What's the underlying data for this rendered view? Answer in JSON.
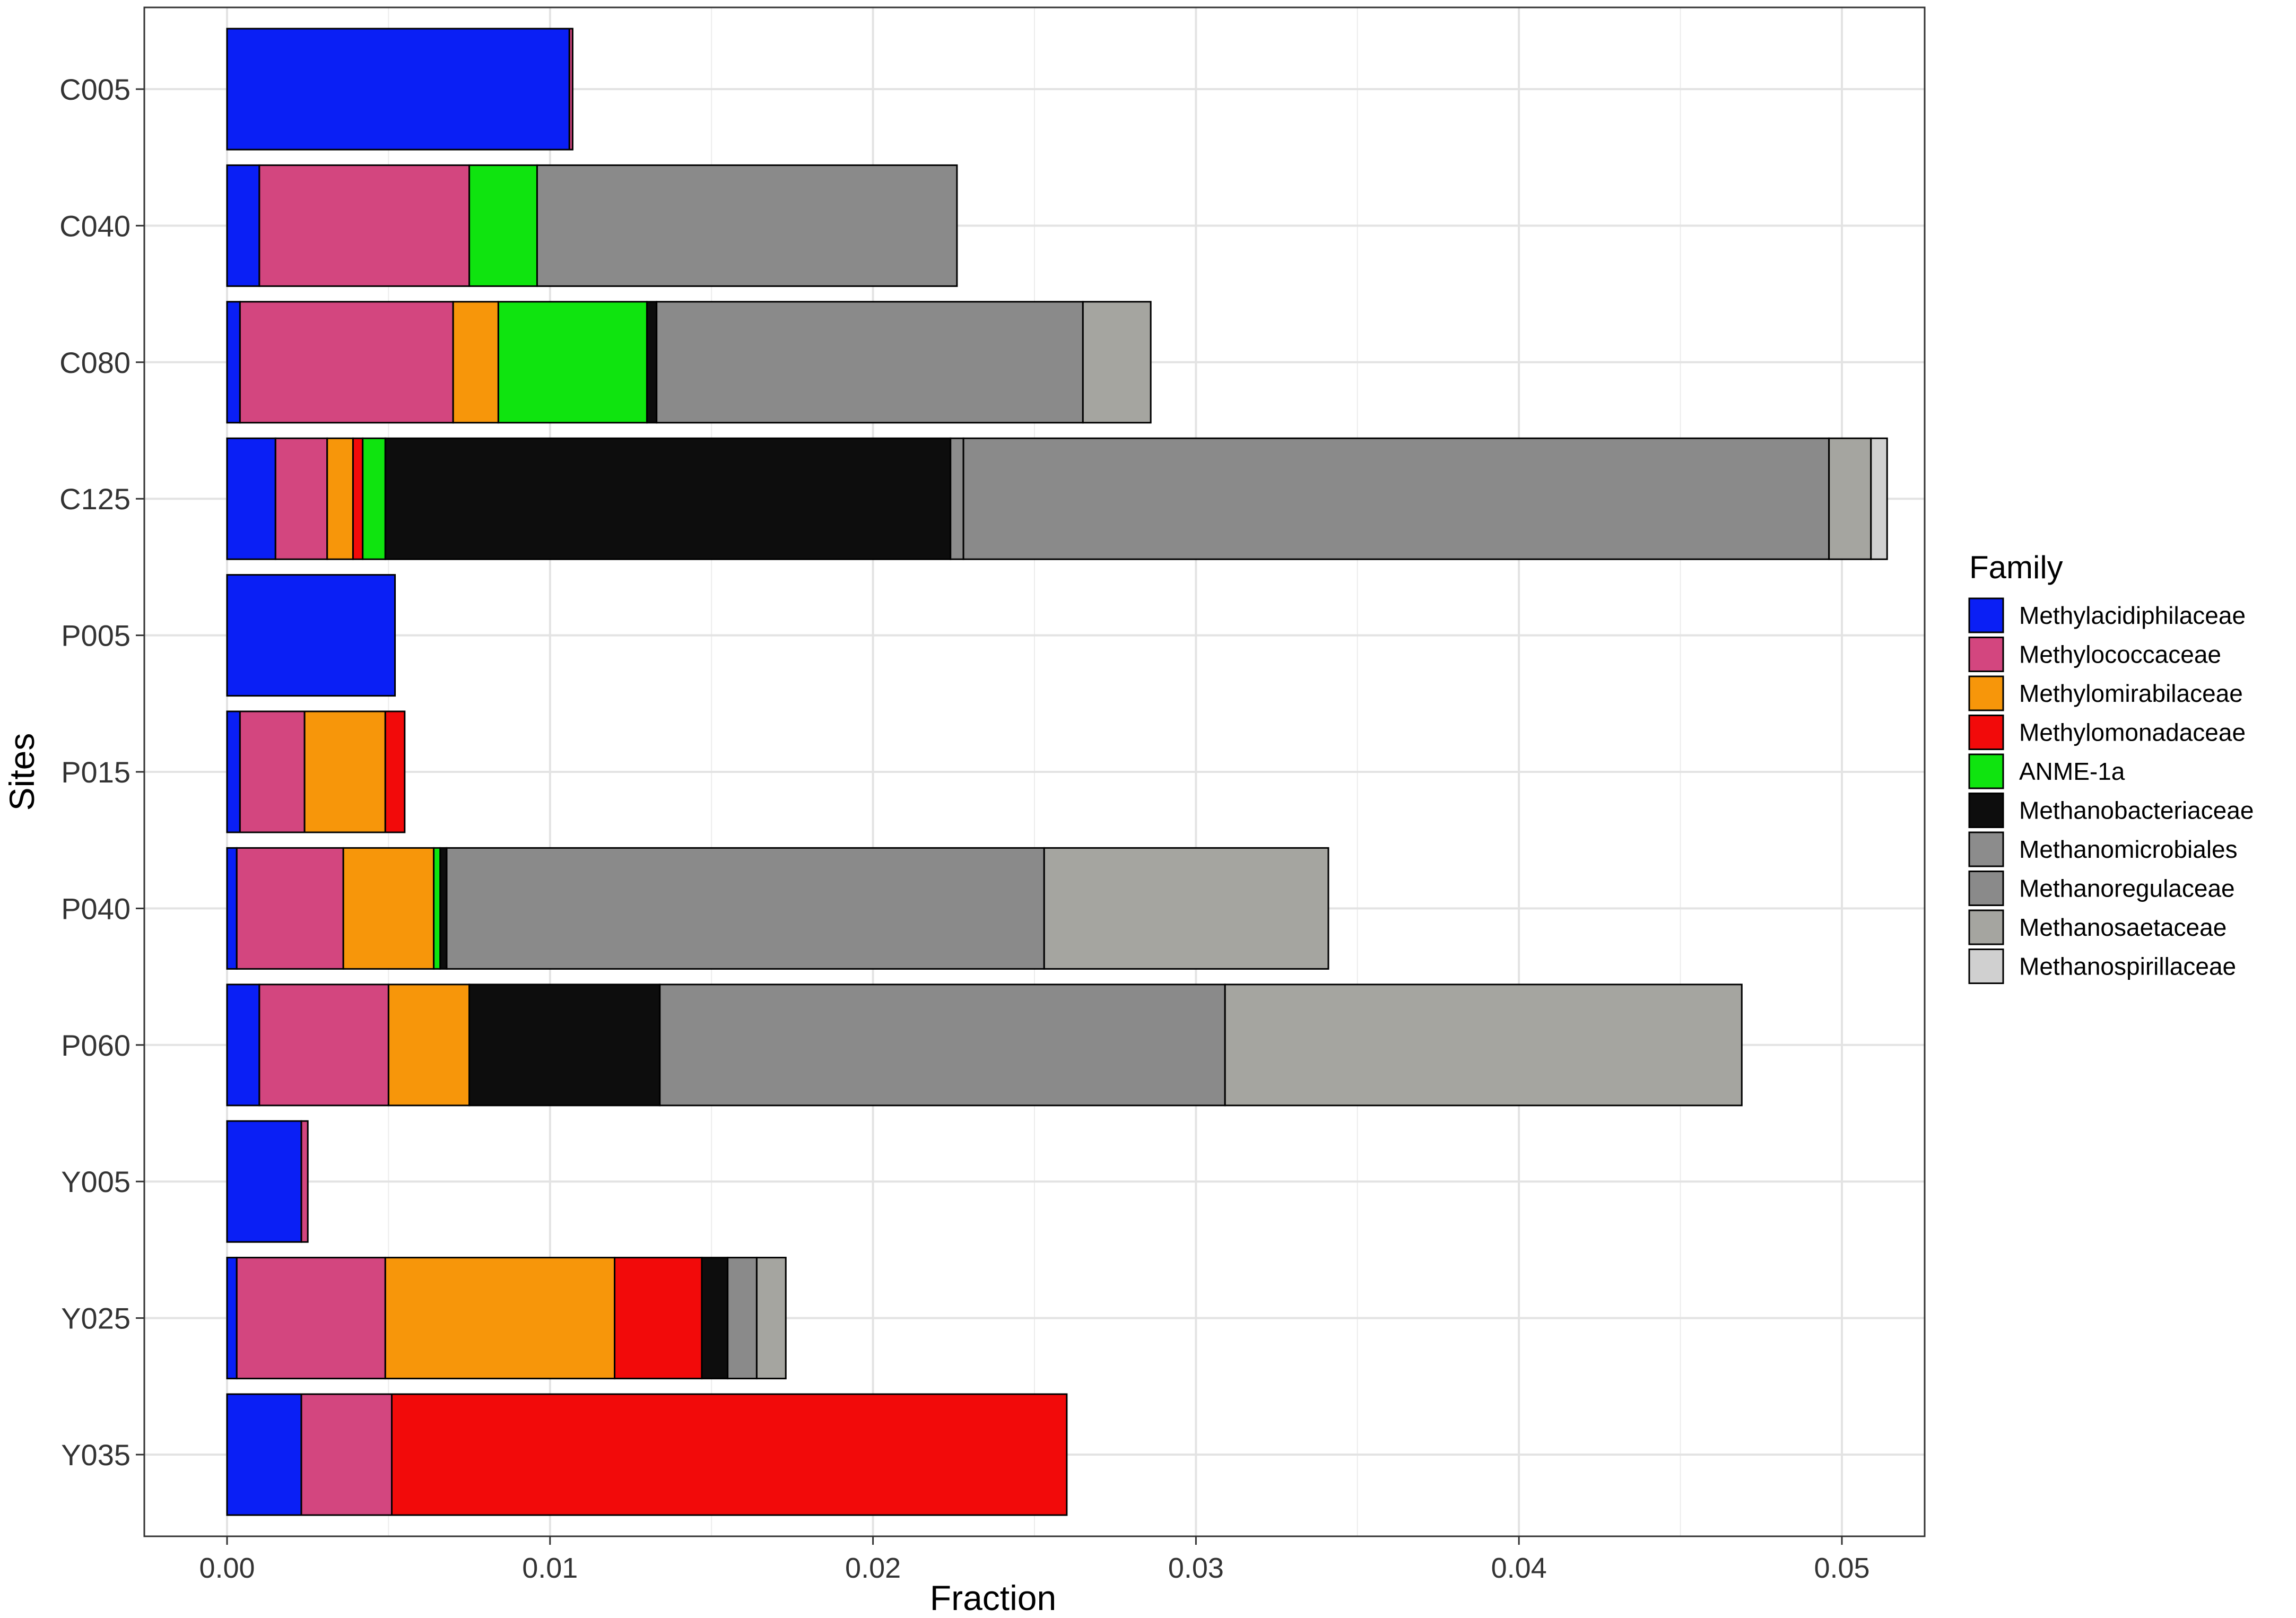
{
  "chart_data": {
    "type": "bar",
    "orientation": "horizontal",
    "stacked": true,
    "title": "",
    "xlabel": "Fraction",
    "ylabel": "Sites",
    "xlim": [
      -0.0013,
      0.0526
    ],
    "x_ticks": [
      0.0,
      0.01,
      0.02,
      0.03,
      0.04,
      0.05
    ],
    "x_tick_labels": [
      "0.00",
      "0.01",
      "0.02",
      "0.03",
      "0.04",
      "0.05"
    ],
    "grid": true,
    "legend_position": "right",
    "legend_title": "Family",
    "categories": [
      "C005",
      "C040",
      "C080",
      "C125",
      "P005",
      "P015",
      "P040",
      "P060",
      "Y005",
      "Y025",
      "Y035"
    ],
    "series": [
      {
        "name": "Methylacidiphilaceae",
        "color": "#0a1ff5",
        "values": [
          0.0106,
          0.001,
          0.0004,
          0.0015,
          0.0052,
          0.0004,
          0.0003,
          0.001,
          0.0023,
          0.0003,
          0.0023
        ]
      },
      {
        "name": "Methylococcaceae",
        "color": "#d3467f",
        "values": [
          0.0001,
          0.0065,
          0.0066,
          0.0016,
          0.0,
          0.002,
          0.0033,
          0.004,
          0.0002,
          0.0046,
          0.0028
        ]
      },
      {
        "name": "Methylomirabilaceae",
        "color": "#f7960a",
        "values": [
          0.0,
          0.0,
          0.0014,
          0.0008,
          0.0,
          0.0025,
          0.0028,
          0.0025,
          0.0,
          0.0071,
          0.0
        ]
      },
      {
        "name": "Methylomonadaceae",
        "color": "#f20a0a",
        "values": [
          0.0,
          0.0,
          0.0,
          0.0003,
          0.0,
          0.0006,
          0.0,
          0.0,
          0.0,
          0.0027,
          0.0209
        ]
      },
      {
        "name": "ANME-1a",
        "color": "#0fe40f",
        "values": [
          0.0,
          0.0021,
          0.0046,
          0.0007,
          0.0,
          0.0,
          0.0002,
          0.0,
          0.0,
          0.0,
          0.0
        ]
      },
      {
        "name": "Methanobacteriaceae",
        "color": "#0d0d0d",
        "values": [
          0.0,
          0.0,
          0.0003,
          0.0175,
          0.0,
          0.0,
          0.0002,
          0.0059,
          0.0,
          0.0008,
          0.0
        ]
      },
      {
        "name": "Methanomicrobiales",
        "color": "#8c8c8c",
        "values": [
          0.0,
          0.0,
          0.0,
          0.0004,
          0.0,
          0.0,
          0.0,
          0.0,
          0.0,
          0.0,
          0.0
        ]
      },
      {
        "name": "Methanoregulaceae",
        "color": "#8a8a8a",
        "values": [
          0.0,
          0.013,
          0.0132,
          0.0268,
          0.0,
          0.0,
          0.0185,
          0.0175,
          0.0,
          0.0009,
          0.0
        ]
      },
      {
        "name": "Methanosaetaceae",
        "color": "#a5a5a0",
        "values": [
          0.0,
          0.0,
          0.0021,
          0.0013,
          0.0,
          0.0,
          0.0088,
          0.016,
          0.0,
          0.0009,
          0.0
        ]
      },
      {
        "name": "Methanospirillaceae",
        "color": "#d0d0d0",
        "values": [
          0.0,
          0.0,
          0.0,
          0.0005,
          0.0,
          0.0,
          0.0,
          0.0,
          0.0,
          0.0,
          0.0
        ]
      }
    ]
  }
}
